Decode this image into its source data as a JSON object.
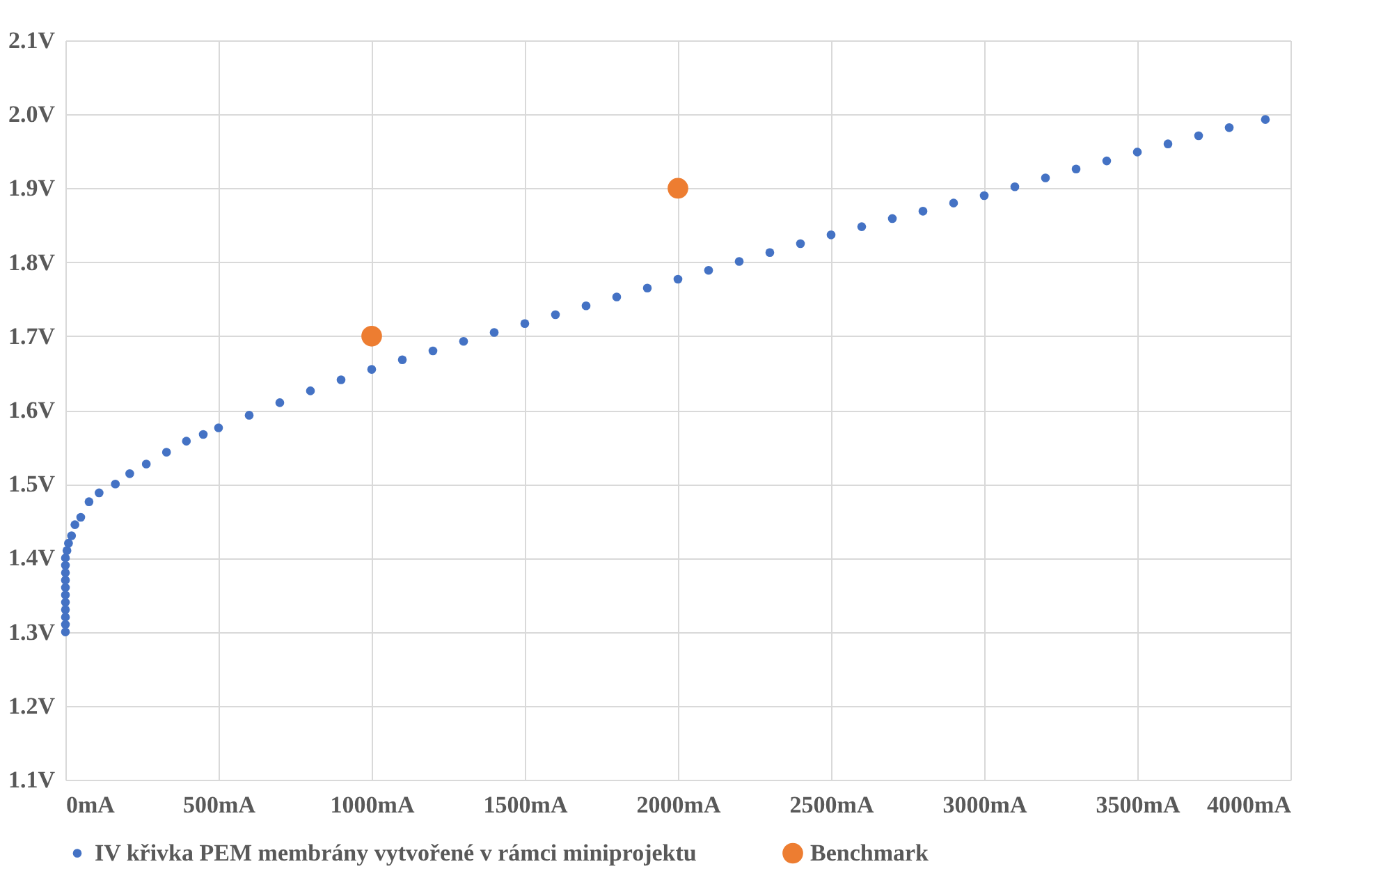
{
  "chart_data": {
    "type": "scatter",
    "xlim": [
      0,
      4000
    ],
    "xticks": [
      {
        "value": 0,
        "label": "0mA"
      },
      {
        "value": 500,
        "label": "500mA"
      },
      {
        "value": 1000,
        "label": "1000mA"
      },
      {
        "value": 1500,
        "label": "1500mA"
      },
      {
        "value": 2000,
        "label": "2000mA"
      },
      {
        "value": 2500,
        "label": "2500mA"
      },
      {
        "value": 3000,
        "label": "3000mA"
      },
      {
        "value": 3500,
        "label": "3500mA"
      },
      {
        "value": 4000,
        "label": "4000mA"
      }
    ],
    "ylim": [
      1.1,
      2.1
    ],
    "yticks": [
      {
        "value": 1.1,
        "label": "1.1V"
      },
      {
        "value": 1.2,
        "label": "1.2V"
      },
      {
        "value": 1.3,
        "label": "1.3V"
      },
      {
        "value": 1.4,
        "label": "1.4V"
      },
      {
        "value": 1.5,
        "label": "1.5V"
      },
      {
        "value": 1.6,
        "label": "1.6V"
      },
      {
        "value": 1.7,
        "label": "1.7V"
      },
      {
        "value": 1.8,
        "label": "1.8V"
      },
      {
        "value": 1.9,
        "label": "1.9V"
      },
      {
        "value": 2.0,
        "label": "2.0V"
      },
      {
        "value": 2.1,
        "label": "2.1V"
      }
    ],
    "grid": true,
    "legend": "bottom",
    "marker": "circle",
    "series": [
      {
        "name": "IV křivka PEM membrány vytvořené v rámci miniprojektu",
        "color": "#4472c4",
        "x": [
          0,
          0,
          0,
          0,
          0,
          0,
          0,
          0,
          0,
          0,
          0,
          5,
          10,
          20,
          31,
          50,
          77,
          110,
          163,
          210,
          264,
          330,
          395,
          450,
          500,
          600,
          700,
          800,
          900,
          1000,
          1100,
          1200,
          1300,
          1400,
          1500,
          1600,
          1700,
          1800,
          1900,
          2000,
          2100,
          2200,
          2300,
          2400,
          2500,
          2600,
          2700,
          2800,
          2900,
          3000,
          3100,
          3200,
          3300,
          3400,
          3500,
          3600,
          3700,
          3800,
          3918
        ],
        "values": [
          1.3,
          1.31,
          1.32,
          1.33,
          1.34,
          1.35,
          1.36,
          1.37,
          1.38,
          1.39,
          1.4,
          1.41,
          1.42,
          1.43,
          1.445,
          1.455,
          1.476,
          1.488,
          1.5,
          1.514,
          1.527,
          1.543,
          1.558,
          1.567,
          1.576,
          1.593,
          1.61,
          1.626,
          1.641,
          1.655,
          1.668,
          1.68,
          1.693,
          1.705,
          1.717,
          1.729,
          1.741,
          1.753,
          1.765,
          1.777,
          1.789,
          1.801,
          1.813,
          1.825,
          1.837,
          1.848,
          1.859,
          1.869,
          1.88,
          1.89,
          1.902,
          1.914,
          1.926,
          1.937,
          1.949,
          1.96,
          1.971,
          1.982,
          1.993
        ]
      },
      {
        "name": "Benchmark",
        "color": "#ed7d31",
        "x": [
          1000,
          2000
        ],
        "values": [
          1.7,
          1.9
        ]
      }
    ]
  }
}
